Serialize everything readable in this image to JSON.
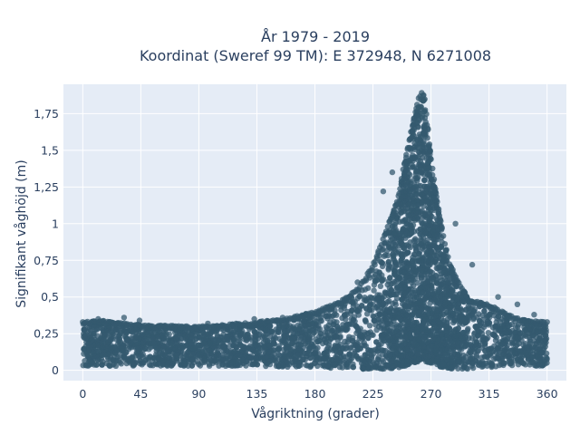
{
  "chart_data": {
    "type": "scatter",
    "title_line1": "År 1979 - 2019",
    "title_line2": "Koordinat (Sweref 99 TM): E 372948, N 6271008",
    "xlabel": "Vågriktning (grader)",
    "ylabel": "Signifikant våghöjd (m)",
    "xlim": [
      -15,
      375
    ],
    "ylim": [
      -0.07,
      1.95
    ],
    "x_ticks": [
      {
        "value": 0,
        "label": "0"
      },
      {
        "value": 45,
        "label": "45"
      },
      {
        "value": 90,
        "label": "90"
      },
      {
        "value": 135,
        "label": "135"
      },
      {
        "value": 180,
        "label": "180"
      },
      {
        "value": 225,
        "label": "225"
      },
      {
        "value": 270,
        "label": "270"
      },
      {
        "value": 315,
        "label": "315"
      },
      {
        "value": 360,
        "label": "360"
      }
    ],
    "y_ticks": [
      {
        "value": 0,
        "label": "0"
      },
      {
        "value": 0.25,
        "label": "0,25"
      },
      {
        "value": 0.5,
        "label": "0,5"
      },
      {
        "value": 0.75,
        "label": "0,75"
      },
      {
        "value": 1,
        "label": "1"
      },
      {
        "value": 1.25,
        "label": "1,25"
      },
      {
        "value": 1.5,
        "label": "1,5"
      },
      {
        "value": 1.75,
        "label": "1,75"
      }
    ],
    "grid": true,
    "marker_color": "#34596f",
    "background_color": "#e5ecf6",
    "envelope": {
      "description_points_dir": [
        0,
        15,
        45,
        90,
        135,
        160,
        180,
        200,
        215,
        225,
        235,
        245,
        250,
        255,
        260,
        263,
        265,
        270,
        275,
        280,
        285,
        295,
        300,
        315,
        330,
        345,
        360
      ],
      "upper_height": [
        0.33,
        0.34,
        0.31,
        0.3,
        0.33,
        0.36,
        0.4,
        0.47,
        0.58,
        0.72,
        0.95,
        1.2,
        1.45,
        1.65,
        1.85,
        1.9,
        1.88,
        1.45,
        1.15,
        0.9,
        0.72,
        0.55,
        0.48,
        0.45,
        0.38,
        0.34,
        0.33
      ],
      "lower_height": [
        0.03,
        0.03,
        0.03,
        0.03,
        0.03,
        0.02,
        0.02,
        0.01,
        0.01,
        0.01,
        0.01,
        0.02,
        0.03,
        0.05,
        0.06,
        0.07,
        0.06,
        0.05,
        0.03,
        0.02,
        0.01,
        0.01,
        0.01,
        0.02,
        0.03,
        0.03,
        0.03
      ]
    },
    "outliers": [
      {
        "x": 12,
        "y": 0.35
      },
      {
        "x": 32,
        "y": 0.36
      },
      {
        "x": 44,
        "y": 0.34
      },
      {
        "x": 97,
        "y": 0.32
      },
      {
        "x": 133,
        "y": 0.35
      },
      {
        "x": 155,
        "y": 0.36
      },
      {
        "x": 213,
        "y": 0.6
      },
      {
        "x": 233,
        "y": 1.22
      },
      {
        "x": 240,
        "y": 1.35
      },
      {
        "x": 289,
        "y": 1.0
      },
      {
        "x": 302,
        "y": 0.72
      },
      {
        "x": 322,
        "y": 0.5
      },
      {
        "x": 337,
        "y": 0.45
      },
      {
        "x": 350,
        "y": 0.38
      }
    ]
  }
}
